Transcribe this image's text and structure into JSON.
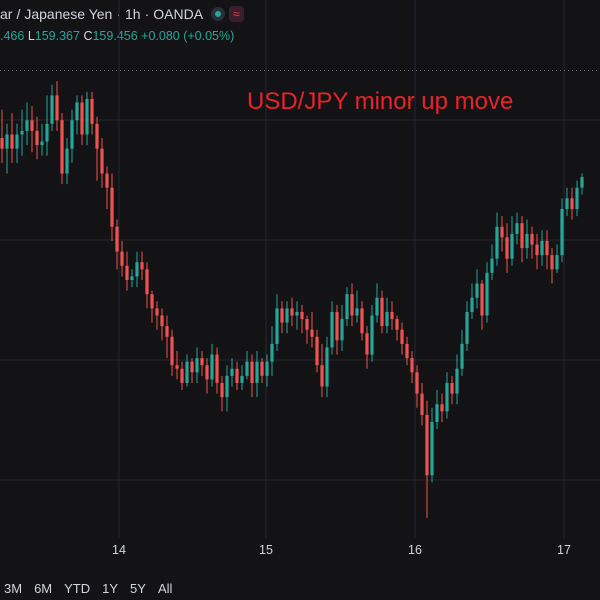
{
  "header": {
    "symbol_fragment": "ar",
    "quote_currency": "Japanese Yen",
    "interval": "1h",
    "broker": "OANDA",
    "wave_icon": "≈",
    "ohlc": {
      "open_fragment": ".466",
      "low_label": "L",
      "low": "159.367",
      "close_label": "C",
      "close": "159.456",
      "change": "+0.080 (+0.05%)"
    }
  },
  "annotation": "USD/JPY minor up move",
  "x_axis": {
    "ticks": [
      "14",
      "15",
      "16",
      "17"
    ]
  },
  "range_buttons": [
    "3M",
    "6M",
    "YTD",
    "1Y",
    "5Y",
    "All"
  ],
  "colors": {
    "background": "#131315",
    "up": "#26a69a",
    "down": "#ef5350",
    "annotation": "#e8242a",
    "grid": "#25272e"
  },
  "chart_data": {
    "type": "candlestick",
    "title": "",
    "price_line_level": 0.59,
    "candles": [
      [
        0.4,
        0.37,
        0.33,
        0.48
      ],
      [
        0.37,
        0.41,
        0.3,
        0.44
      ],
      [
        0.41,
        0.37,
        0.33,
        0.47
      ],
      [
        0.37,
        0.41,
        0.33,
        0.44
      ],
      [
        0.41,
        0.42,
        0.35,
        0.48
      ],
      [
        0.42,
        0.45,
        0.38,
        0.5
      ],
      [
        0.45,
        0.42,
        0.36,
        0.49
      ],
      [
        0.42,
        0.38,
        0.34,
        0.46
      ],
      [
        0.38,
        0.39,
        0.35,
        0.44
      ],
      [
        0.39,
        0.44,
        0.35,
        0.52
      ],
      [
        0.44,
        0.52,
        0.42,
        0.55
      ],
      [
        0.52,
        0.45,
        0.42,
        0.56
      ],
      [
        0.45,
        0.3,
        0.27,
        0.47
      ],
      [
        0.3,
        0.37,
        0.27,
        0.4
      ],
      [
        0.37,
        0.45,
        0.33,
        0.48
      ],
      [
        0.45,
        0.5,
        0.41,
        0.52
      ],
      [
        0.5,
        0.41,
        0.38,
        0.52
      ],
      [
        0.41,
        0.51,
        0.38,
        0.53
      ],
      [
        0.51,
        0.44,
        0.41,
        0.53
      ],
      [
        0.44,
        0.37,
        0.28,
        0.46
      ],
      [
        0.37,
        0.3,
        0.26,
        0.4
      ],
      [
        0.3,
        0.26,
        0.2,
        0.32
      ],
      [
        0.26,
        0.15,
        0.11,
        0.3
      ],
      [
        0.15,
        0.08,
        0.03,
        0.17
      ],
      [
        0.08,
        0.04,
        0.01,
        0.11
      ],
      [
        0.04,
        0.0,
        -0.03,
        0.08
      ],
      [
        0.0,
        0.01,
        -0.02,
        0.03
      ],
      [
        0.01,
        0.05,
        -0.02,
        0.08
      ],
      [
        0.05,
        0.03,
        0.0,
        0.08
      ],
      [
        0.03,
        -0.04,
        -0.08,
        0.05
      ],
      [
        -0.04,
        -0.08,
        -0.12,
        -0.03
      ],
      [
        -0.08,
        -0.1,
        -0.14,
        -0.06
      ],
      [
        -0.1,
        -0.13,
        -0.17,
        -0.08
      ],
      [
        -0.13,
        -0.16,
        -0.22,
        -0.1
      ],
      [
        -0.16,
        -0.24,
        -0.27,
        -0.14
      ],
      [
        -0.24,
        -0.25,
        -0.28,
        -0.2
      ],
      [
        -0.25,
        -0.29,
        -0.31,
        -0.23
      ],
      [
        -0.29,
        -0.23,
        -0.3,
        -0.21
      ],
      [
        -0.23,
        -0.26,
        -0.29,
        -0.22
      ],
      [
        -0.26,
        -0.22,
        -0.29,
        -0.19
      ],
      [
        -0.22,
        -0.24,
        -0.27,
        -0.2
      ],
      [
        -0.24,
        -0.28,
        -0.32,
        -0.22
      ],
      [
        -0.28,
        -0.21,
        -0.3,
        -0.18
      ],
      [
        -0.21,
        -0.29,
        -0.32,
        -0.19
      ],
      [
        -0.29,
        -0.33,
        -0.37,
        -0.27
      ],
      [
        -0.33,
        -0.27,
        -0.37,
        -0.24
      ],
      [
        -0.27,
        -0.25,
        -0.3,
        -0.22
      ],
      [
        -0.25,
        -0.29,
        -0.31,
        -0.23
      ],
      [
        -0.29,
        -0.27,
        -0.31,
        -0.24
      ],
      [
        -0.27,
        -0.23,
        -0.28,
        -0.2
      ],
      [
        -0.23,
        -0.29,
        -0.33,
        -0.21
      ],
      [
        -0.29,
        -0.23,
        -0.33,
        -0.2
      ],
      [
        -0.23,
        -0.27,
        -0.29,
        -0.22
      ],
      [
        -0.27,
        -0.23,
        -0.3,
        -0.21
      ],
      [
        -0.23,
        -0.18,
        -0.27,
        -0.13
      ],
      [
        -0.18,
        -0.08,
        -0.2,
        -0.04
      ],
      [
        -0.08,
        -0.12,
        -0.15,
        -0.06
      ],
      [
        -0.12,
        -0.08,
        -0.15,
        -0.06
      ],
      [
        -0.08,
        -0.1,
        -0.13,
        -0.05
      ],
      [
        -0.1,
        -0.09,
        -0.14,
        -0.06
      ],
      [
        -0.09,
        -0.11,
        -0.15,
        -0.07
      ],
      [
        -0.11,
        -0.14,
        -0.18,
        -0.1
      ],
      [
        -0.14,
        -0.16,
        -0.19,
        -0.09
      ],
      [
        -0.16,
        -0.24,
        -0.26,
        -0.14
      ],
      [
        -0.24,
        -0.3,
        -0.33,
        -0.18
      ],
      [
        -0.3,
        -0.19,
        -0.33,
        -0.16
      ],
      [
        -0.19,
        -0.09,
        -0.21,
        -0.06
      ],
      [
        -0.09,
        -0.17,
        -0.21,
        -0.07
      ],
      [
        -0.17,
        -0.11,
        -0.2,
        -0.07
      ],
      [
        -0.11,
        -0.04,
        -0.13,
        -0.02
      ],
      [
        -0.04,
        -0.1,
        -0.13,
        -0.01
      ],
      [
        -0.1,
        -0.08,
        -0.12,
        -0.03
      ],
      [
        -0.08,
        -0.15,
        -0.17,
        -0.06
      ],
      [
        -0.15,
        -0.21,
        -0.25,
        -0.13
      ],
      [
        -0.21,
        -0.1,
        -0.23,
        -0.07
      ],
      [
        -0.1,
        -0.05,
        -0.12,
        -0.01
      ],
      [
        -0.05,
        -0.13,
        -0.15,
        -0.03
      ],
      [
        -0.13,
        -0.09,
        -0.15,
        -0.05
      ],
      [
        -0.09,
        -0.11,
        -0.14,
        -0.06
      ],
      [
        -0.11,
        -0.14,
        -0.17,
        -0.1
      ],
      [
        -0.14,
        -0.18,
        -0.21,
        -0.12
      ],
      [
        -0.18,
        -0.22,
        -0.24,
        -0.16
      ],
      [
        -0.22,
        -0.26,
        -0.29,
        -0.2
      ],
      [
        -0.26,
        -0.32,
        -0.36,
        -0.24
      ],
      [
        -0.32,
        -0.38,
        -0.41,
        -0.29
      ],
      [
        -0.38,
        -0.55,
        -0.67,
        -0.34
      ],
      [
        -0.55,
        -0.4,
        -0.57,
        -0.36
      ],
      [
        -0.4,
        -0.35,
        -0.42,
        -0.31
      ],
      [
        -0.35,
        -0.37,
        -0.4,
        -0.32
      ],
      [
        -0.37,
        -0.29,
        -0.39,
        -0.26
      ],
      [
        -0.29,
        -0.32,
        -0.35,
        -0.27
      ],
      [
        -0.32,
        -0.25,
        -0.35,
        -0.21
      ],
      [
        -0.25,
        -0.18,
        -0.27,
        -0.14
      ],
      [
        -0.18,
        -0.09,
        -0.2,
        -0.06
      ],
      [
        -0.09,
        -0.05,
        -0.11,
        -0.01
      ],
      [
        -0.05,
        -0.01,
        -0.08,
        0.03
      ],
      [
        -0.01,
        -0.1,
        -0.14,
        0.0
      ],
      [
        -0.1,
        0.02,
        -0.12,
        0.05
      ],
      [
        0.02,
        0.06,
        0.0,
        0.1
      ],
      [
        0.06,
        0.15,
        0.04,
        0.19
      ],
      [
        0.15,
        0.12,
        0.08,
        0.18
      ],
      [
        0.12,
        0.06,
        0.02,
        0.16
      ],
      [
        0.06,
        0.13,
        0.04,
        0.18
      ],
      [
        0.13,
        0.16,
        0.1,
        0.19
      ],
      [
        0.16,
        0.09,
        0.05,
        0.18
      ],
      [
        0.09,
        0.13,
        0.06,
        0.17
      ],
      [
        0.13,
        0.1,
        0.06,
        0.15
      ],
      [
        0.1,
        0.07,
        0.03,
        0.13
      ],
      [
        0.07,
        0.11,
        0.04,
        0.14
      ],
      [
        0.11,
        0.07,
        0.03,
        0.14
      ],
      [
        0.07,
        0.03,
        -0.01,
        0.09
      ],
      [
        0.03,
        0.07,
        0.02,
        0.1
      ],
      [
        0.07,
        0.2,
        0.05,
        0.23
      ],
      [
        0.2,
        0.23,
        0.18,
        0.26
      ],
      [
        0.23,
        0.2,
        0.17,
        0.26
      ],
      [
        0.2,
        0.26,
        0.18,
        0.28
      ],
      [
        0.26,
        0.29,
        0.24,
        0.3
      ]
    ]
  }
}
